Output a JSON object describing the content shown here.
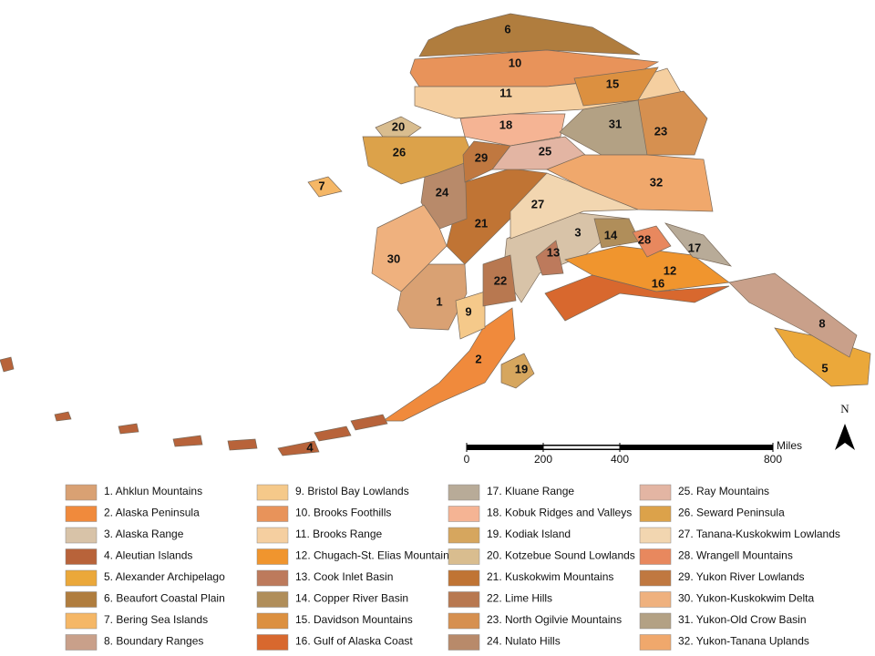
{
  "map": {
    "north_label": "N",
    "scale": {
      "unit": "Miles",
      "ticks": [
        0,
        200,
        400,
        800
      ]
    },
    "regions": [
      {
        "map_label": "1",
        "legend": "1. Ahklun Mountains",
        "color": "#d9a173"
      },
      {
        "map_label": "2",
        "legend": "2. Alaska Peninsula",
        "color": "#f08a3c"
      },
      {
        "map_label": "3",
        "legend": "3. Alaska Range",
        "color": "#d8c3a8"
      },
      {
        "map_label": "4",
        "legend": "4. Aleutian Islands",
        "color": "#b8633a"
      },
      {
        "map_label": "5",
        "legend": "5. Alexander Archipelago",
        "color": "#eba83a"
      },
      {
        "map_label": "6",
        "legend": "6. Beaufort Coastal Plain",
        "color": "#b07d3e"
      },
      {
        "map_label": "7",
        "legend": "7. Bering Sea Islands",
        "color": "#f5b766"
      },
      {
        "map_label": "8",
        "legend": "8. Boundary Ranges",
        "color": "#c9a08a"
      },
      {
        "map_label": "9",
        "legend": "9. Bristol Bay Lowlands",
        "color": "#f5c98a"
      },
      {
        "map_label": "10",
        "legend": "10. Brooks Foothills",
        "color": "#e8935a"
      },
      {
        "map_label": "11",
        "legend": "11. Brooks Range",
        "color": "#f5cfa0"
      },
      {
        "map_label": "12",
        "legend": "12. Chugach-St. Elias Mountains",
        "color": "#f0952e"
      },
      {
        "map_label": "13",
        "legend": "13. Cook Inlet Basin",
        "color": "#bd7a5c"
      },
      {
        "map_label": "14",
        "legend": "14. Copper River Basin",
        "color": "#b08e5a"
      },
      {
        "map_label": "15",
        "legend": "15. Davidson Mountains",
        "color": "#dc9040"
      },
      {
        "map_label": "16",
        "legend": "16. Gulf of Alaska Coast",
        "color": "#d8682e"
      },
      {
        "map_label": "17",
        "legend": "17. Kluane Range",
        "color": "#b8ab98"
      },
      {
        "map_label": "18",
        "legend": "18. Kobuk Ridges and Valleys",
        "color": "#f5b494"
      },
      {
        "map_label": "19",
        "legend": "19. Kodiak Island",
        "color": "#d6a65e"
      },
      {
        "map_label": "20",
        "legend": "20. Kotzebue Sound Lowlands",
        "color": "#d9bd8f"
      },
      {
        "map_label": "21",
        "legend": "21. Kuskokwim Mountains",
        "color": "#c07434"
      },
      {
        "map_label": "22",
        "legend": "22. Lime Hills",
        "color": "#b87850"
      },
      {
        "map_label": "23",
        "legend": "23. North Ogilvie Mountains",
        "color": "#d69050"
      },
      {
        "map_label": "24",
        "legend": "24. Nulato Hills",
        "color": "#b88a6a"
      },
      {
        "map_label": "25",
        "legend": "25. Ray Mountains",
        "color": "#e3b5a3"
      },
      {
        "map_label": "26",
        "legend": "26. Seward Peninsula",
        "color": "#dca24a"
      },
      {
        "map_label": "27",
        "legend": "27. Tanana-Kuskokwim Lowlands",
        "color": "#f2d6b0"
      },
      {
        "map_label": "28",
        "legend": "28. Wrangell Mountains",
        "color": "#e8885e"
      },
      {
        "map_label": "29",
        "legend": "29. Yukon River Lowlands",
        "color": "#c07840"
      },
      {
        "map_label": "30",
        "legend": "30. Yukon-Kuskokwim Delta",
        "color": "#efb17e"
      },
      {
        "map_label": "31",
        "legend": "31. Yukon-Old Crow Basin",
        "color": "#b3a184"
      },
      {
        "map_label": "32",
        "legend": "32. Yukon-Tanana Uplands",
        "color": "#f0a86c"
      }
    ]
  }
}
